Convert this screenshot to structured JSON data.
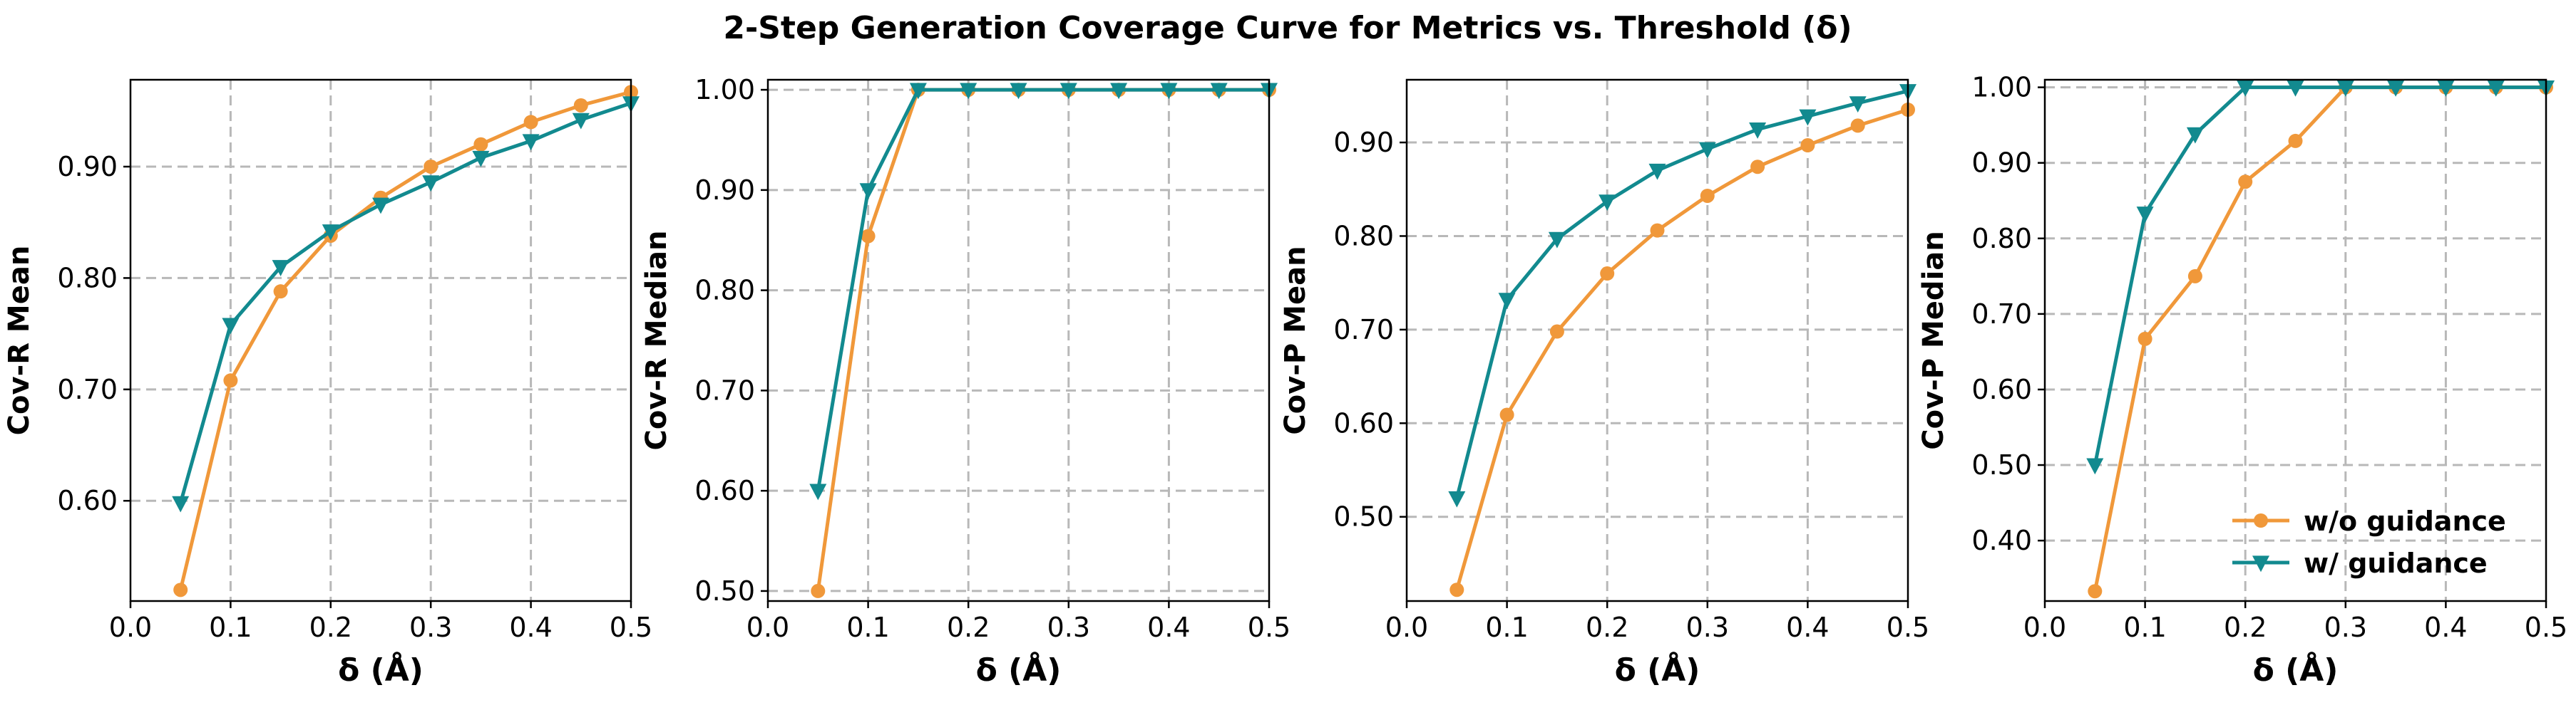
{
  "title": "2-Step Generation Coverage Curve for Metrics vs. Threshold (δ)",
  "colors": {
    "wo_guidance": "#F0983A",
    "w_guidance": "#128A8F",
    "grid": "#b8b8b8"
  },
  "chart_data": [
    {
      "type": "line",
      "ylabel": "Cov-R Mean",
      "xlabel": "δ (Å)",
      "xlim": [
        0.0,
        0.5
      ],
      "xticks": [
        "0.0",
        "0.1",
        "0.2",
        "0.3",
        "0.4",
        "0.5"
      ],
      "ylim": [
        0.51,
        0.978
      ],
      "yticks": [
        "0.60",
        "0.70",
        "0.80",
        "0.90"
      ],
      "grid": true,
      "x": [
        0.05,
        0.1,
        0.15,
        0.2,
        0.25,
        0.3,
        0.35,
        0.4,
        0.45,
        0.5
      ],
      "series": [
        {
          "name": "w/o guidance",
          "marker": "circle",
          "values": [
            0.52,
            0.708,
            0.788,
            0.838,
            0.872,
            0.9,
            0.92,
            0.94,
            0.955,
            0.967
          ]
        },
        {
          "name": "w/ guidance",
          "marker": "triangle-down",
          "values": [
            0.598,
            0.758,
            0.81,
            0.842,
            0.866,
            0.886,
            0.908,
            0.923,
            0.942,
            0.957
          ]
        }
      ]
    },
    {
      "type": "line",
      "ylabel": "Cov-R Median",
      "xlabel": "δ (Å)",
      "xlim": [
        0.0,
        0.5
      ],
      "xticks": [
        "0.0",
        "0.1",
        "0.2",
        "0.3",
        "0.4",
        "0.5"
      ],
      "ylim": [
        0.49,
        1.01
      ],
      "yticks": [
        "0.50",
        "0.60",
        "0.70",
        "0.80",
        "0.90",
        "1.00"
      ],
      "grid": true,
      "x": [
        0.05,
        0.1,
        0.15,
        0.2,
        0.25,
        0.3,
        0.35,
        0.4,
        0.45,
        0.5
      ],
      "series": [
        {
          "name": "w/o guidance",
          "marker": "circle",
          "values": [
            0.5,
            0.854,
            1.0,
            1.0,
            1.0,
            1.0,
            1.0,
            1.0,
            1.0,
            1.0
          ]
        },
        {
          "name": "w/ guidance",
          "marker": "triangle-down",
          "values": [
            0.6,
            0.9,
            1.0,
            1.0,
            1.0,
            1.0,
            1.0,
            1.0,
            1.0,
            1.0
          ]
        }
      ]
    },
    {
      "type": "line",
      "ylabel": "Cov-P Mean",
      "xlabel": "δ (Å)",
      "xlim": [
        0.0,
        0.5
      ],
      "xticks": [
        "0.0",
        "0.1",
        "0.2",
        "0.3",
        "0.4",
        "0.5"
      ],
      "ylim": [
        0.41,
        0.967
      ],
      "yticks": [
        "0.50",
        "0.60",
        "0.70",
        "0.80",
        "0.90"
      ],
      "grid": true,
      "x": [
        0.05,
        0.1,
        0.15,
        0.2,
        0.25,
        0.3,
        0.35,
        0.4,
        0.45,
        0.5
      ],
      "series": [
        {
          "name": "w/o guidance",
          "marker": "circle",
          "values": [
            0.422,
            0.609,
            0.698,
            0.76,
            0.806,
            0.843,
            0.874,
            0.897,
            0.918,
            0.935
          ]
        },
        {
          "name": "w/ guidance",
          "marker": "triangle-down",
          "values": [
            0.52,
            0.732,
            0.797,
            0.837,
            0.87,
            0.893,
            0.914,
            0.928,
            0.942,
            0.955
          ]
        }
      ]
    },
    {
      "type": "line",
      "ylabel": "Cov-P Median",
      "xlabel": "δ (Å)",
      "xlim": [
        0.0,
        0.5
      ],
      "xticks": [
        "0.0",
        "0.1",
        "0.2",
        "0.3",
        "0.4",
        "0.5"
      ],
      "ylim": [
        0.32,
        1.01
      ],
      "yticks": [
        "0.40",
        "0.50",
        "0.60",
        "0.70",
        "0.80",
        "0.90",
        "1.00"
      ],
      "grid": true,
      "legend": "lower-right",
      "x": [
        0.05,
        0.1,
        0.15,
        0.2,
        0.25,
        0.3,
        0.35,
        0.4,
        0.45,
        0.5
      ],
      "series": [
        {
          "name": "w/o guidance",
          "marker": "circle",
          "values": [
            0.333,
            0.667,
            0.75,
            0.875,
            0.929,
            1.0,
            1.0,
            1.0,
            1.0,
            1.0
          ]
        },
        {
          "name": "w/ guidance",
          "marker": "triangle-down",
          "values": [
            0.5,
            0.833,
            0.938,
            1.0,
            1.0,
            1.0,
            1.0,
            1.0,
            1.0,
            1.0
          ]
        }
      ]
    }
  ]
}
